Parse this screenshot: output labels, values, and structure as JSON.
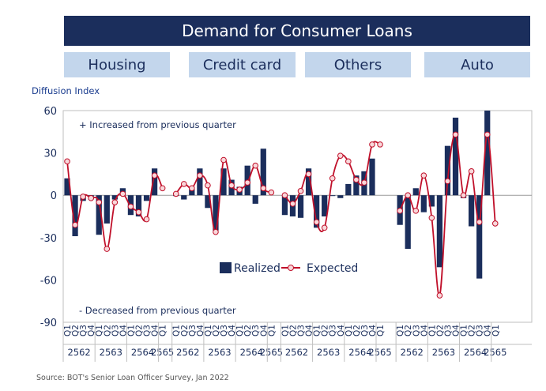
{
  "title": "Demand for Consumer Loans",
  "chart_data": {
    "type": "bar+line",
    "ylabel": "Diffusion Index",
    "ylim": [
      -90,
      60
    ],
    "yticks": [
      60,
      30,
      0,
      -30,
      -60,
      -90
    ],
    "annotation_top": "+ Increased from previous quarter",
    "annotation_bottom": "- Decreased from previous quarter",
    "legend": [
      "Realized",
      "Expected"
    ],
    "colors": {
      "realized": "#1b2e5c",
      "expected": "#c0102a",
      "marker_fill": "#f8d7da"
    },
    "panels": [
      {
        "name": "Housing",
        "quarters": [
          "Q1",
          "Q2",
          "Q3",
          "Q4",
          "Q1",
          "Q2",
          "Q3",
          "Q4",
          "Q1",
          "Q2",
          "Q3",
          "Q4",
          "Q1"
        ],
        "years": [
          {
            "label": "2562",
            "span": 4
          },
          {
            "label": "2563",
            "span": 4
          },
          {
            "label": "2564",
            "span": 4
          },
          {
            "label": "2565",
            "span": 1
          }
        ],
        "realized": [
          12,
          -29,
          -4,
          -3,
          -28,
          -20,
          -3,
          5,
          -14,
          -15,
          -4,
          19,
          null
        ],
        "expected": [
          24,
          -21,
          -1,
          -2,
          -5,
          -38,
          -5,
          1,
          -8,
          -12,
          -17,
          14,
          5
        ]
      },
      {
        "name": "Credit card",
        "quarters": [
          "Q1",
          "Q2",
          "Q3",
          "Q4",
          "Q1",
          "Q2",
          "Q3",
          "Q4",
          "Q1",
          "Q2",
          "Q3",
          "Q4",
          "Q1"
        ],
        "years": [
          {
            "label": "2562",
            "span": 4
          },
          {
            "label": "2563",
            "span": 4
          },
          {
            "label": "2564",
            "span": 4
          },
          {
            "label": "2565",
            "span": 1
          }
        ],
        "realized": [
          0,
          -3,
          6,
          19,
          -9,
          -25,
          19,
          11,
          6,
          21,
          -6,
          33,
          null
        ],
        "expected": [
          1,
          8,
          5,
          14,
          7,
          -26,
          25,
          7,
          4,
          9,
          21,
          5,
          2
        ]
      },
      {
        "name": "Others",
        "quarters": [
          "Q1",
          "Q2",
          "Q3",
          "Q4",
          "Q1",
          "Q2",
          "Q3",
          "Q4",
          "Q1",
          "Q2",
          "Q3",
          "Q4",
          "Q1"
        ],
        "years": [
          {
            "label": "2562",
            "span": 4
          },
          {
            "label": "2563",
            "span": 4
          },
          {
            "label": "2564",
            "span": 4
          },
          {
            "label": "2565",
            "span": 1
          }
        ],
        "realized": [
          -14,
          -15,
          -16,
          19,
          -23,
          -15,
          0,
          -2,
          8,
          14,
          17,
          26,
          null
        ],
        "expected": [
          0,
          -6,
          3,
          15,
          -19,
          -23,
          12,
          28,
          24,
          11,
          9,
          36,
          36
        ]
      },
      {
        "name": "Auto",
        "quarters": [
          "Q1",
          "Q2",
          "Q3",
          "Q4",
          "Q1",
          "Q2",
          "Q3",
          "Q4",
          "Q1",
          "Q2",
          "Q3",
          "Q4",
          "Q1"
        ],
        "years": [
          {
            "label": "2562",
            "span": 4
          },
          {
            "label": "2563",
            "span": 4
          },
          {
            "label": "2564",
            "span": 4
          },
          {
            "label": "2565",
            "span": 1
          }
        ],
        "realized": [
          -21,
          -38,
          5,
          -12,
          -8,
          -51,
          35,
          55,
          -2,
          -22,
          -59,
          60,
          null
        ],
        "expected": [
          -11,
          0,
          -11,
          14,
          -16,
          -71,
          10,
          43,
          0,
          17,
          -19,
          43,
          -20
        ]
      }
    ]
  },
  "source": "Source: BOT's Senior Loan Officer Survey, Jan 2022"
}
